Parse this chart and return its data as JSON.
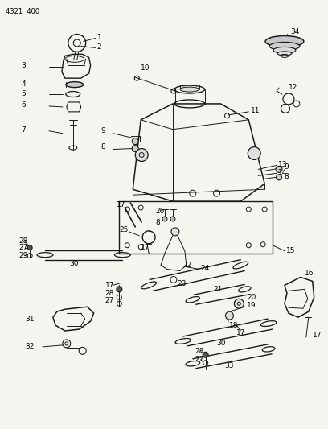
{
  "bg_color": "#f5f5f0",
  "line_color": "#1a1a1a",
  "label_color": "#000000",
  "figsize": [
    4.08,
    5.33
  ],
  "dpi": 100,
  "header": "4321  400"
}
